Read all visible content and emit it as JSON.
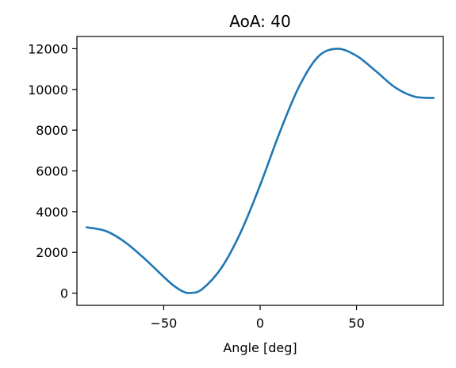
{
  "chart_data": {
    "type": "line",
    "title": "AoA: 40",
    "xlabel": "Angle [deg]",
    "ylabel": "",
    "xlim": [
      -95,
      95
    ],
    "ylim": [
      -600,
      12600
    ],
    "x_ticks": [
      -50,
      0,
      50
    ],
    "x_tick_labels": [
      "−50",
      "0",
      "50"
    ],
    "y_ticks": [
      0,
      2000,
      4000,
      6000,
      8000,
      10000,
      12000
    ],
    "y_tick_labels": [
      "0",
      "2000",
      "4000",
      "6000",
      "8000",
      "10000",
      "12000"
    ],
    "grid": false,
    "series": [
      {
        "color": "#1f77b4",
        "x": [
          -90,
          -80,
          -70,
          -60,
          -50,
          -45,
          -40,
          -36,
          -30,
          -20,
          -10,
          0,
          10,
          20,
          30,
          40,
          50,
          60,
          70,
          80,
          90
        ],
        "y": [
          3230,
          3050,
          2500,
          1700,
          800,
          380,
          80,
          10,
          200,
          1250,
          3000,
          5300,
          7850,
          10100,
          11600,
          12000,
          11650,
          10900,
          10100,
          9650,
          9580
        ]
      }
    ]
  }
}
